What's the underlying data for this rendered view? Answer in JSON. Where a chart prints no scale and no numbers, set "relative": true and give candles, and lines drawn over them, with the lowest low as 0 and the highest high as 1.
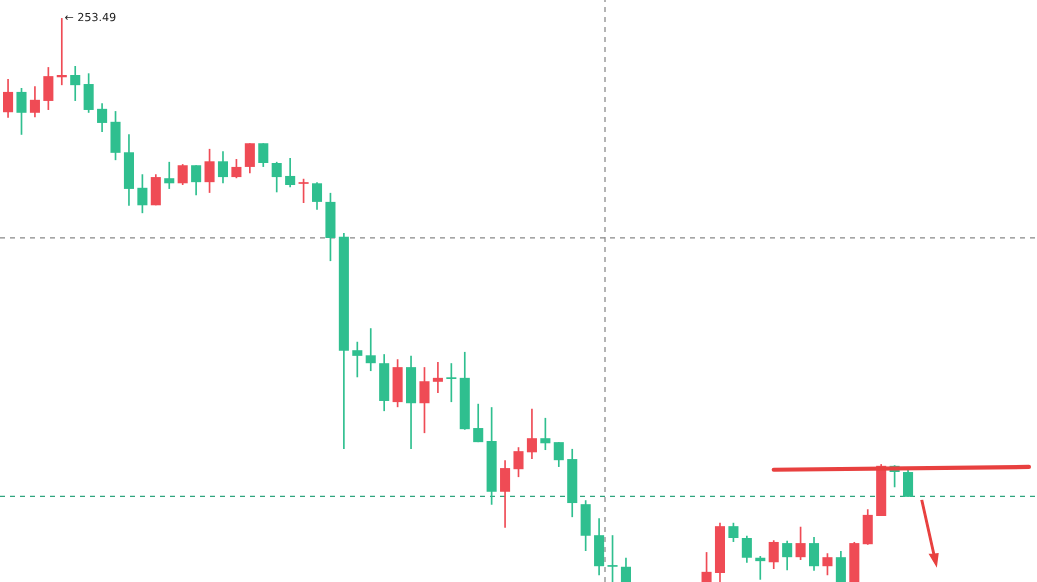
{
  "chart_data": {
    "type": "candlestick",
    "relative": true,
    "categories": [
      null,
      null,
      null,
      null,
      null,
      null,
      null,
      null,
      null,
      null,
      null,
      null,
      null,
      null,
      null,
      null,
      null,
      null,
      null,
      null,
      null,
      null,
      null,
      null,
      null,
      null,
      null,
      null,
      null,
      null,
      null,
      null,
      null,
      null,
      null,
      null,
      null,
      null,
      null,
      null,
      null,
      null,
      null,
      null,
      null,
      null,
      null,
      null,
      null,
      null,
      null,
      null,
      null,
      null,
      null,
      null,
      null,
      null,
      null,
      null,
      null,
      null,
      null,
      null,
      null,
      null,
      null,
      null,
      null,
      null,
      null,
      null,
      null,
      null,
      null,
      null,
      null
    ],
    "ohlc": [
      [
        0.833,
        0.892,
        0.823,
        0.869
      ],
      [
        0.869,
        0.876,
        0.793,
        0.832
      ],
      [
        0.832,
        0.879,
        0.824,
        0.855
      ],
      [
        0.853,
        0.913,
        0.837,
        0.897
      ],
      [
        0.895,
        1,
        0.881,
        0.899
      ],
      [
        0.899,
        0.915,
        0.853,
        0.881
      ],
      [
        0.883,
        0.902,
        0.832,
        0.837
      ],
      [
        0.839,
        0.849,
        0.798,
        0.814
      ],
      [
        0.816,
        0.835,
        0.748,
        0.761
      ],
      [
        0.762,
        0.794,
        0.667,
        0.697
      ],
      [
        0.699,
        0.723,
        0.654,
        0.668
      ],
      [
        0.668,
        0.723,
        0.668,
        0.718
      ],
      [
        0.716,
        0.745,
        0.697,
        0.707
      ],
      [
        0.707,
        0.741,
        0.704,
        0.739
      ],
      [
        0.739,
        0.739,
        0.686,
        0.709
      ],
      [
        0.709,
        0.768,
        0.69,
        0.746
      ],
      [
        0.746,
        0.764,
        0.707,
        0.718
      ],
      [
        0.718,
        0.75,
        0.716,
        0.736
      ],
      [
        0.736,
        0.778,
        0.725,
        0.778
      ],
      [
        0.778,
        0.778,
        0.736,
        0.743
      ],
      [
        0.743,
        0.745,
        0.691,
        0.718
      ],
      [
        0.72,
        0.752,
        0.7,
        0.704
      ],
      [
        0.706,
        0.715,
        0.672,
        0.707
      ],
      [
        0.707,
        0.709,
        0.66,
        0.674
      ],
      [
        0.674,
        0.69,
        0.569,
        0.61
      ],
      [
        0.612,
        0.619,
        0.236,
        0.41
      ],
      [
        0.411,
        0.426,
        0.363,
        0.401
      ],
      [
        0.402,
        0.45,
        0.374,
        0.388
      ],
      [
        0.388,
        0.404,
        0.303,
        0.321
      ],
      [
        0.319,
        0.395,
        0.31,
        0.381
      ],
      [
        0.381,
        0.401,
        0.236,
        0.317
      ],
      [
        0.317,
        0.381,
        0.264,
        0.356
      ],
      [
        0.355,
        0.39,
        0.335,
        0.362
      ],
      [
        0.363,
        0.388,
        0.319,
        0.36
      ],
      [
        0.362,
        0.408,
        0.27,
        0.271
      ],
      [
        0.273,
        0.316,
        0.248,
        0.248
      ],
      [
        0.25,
        0.31,
        0.137,
        0.16
      ],
      [
        0.16,
        0.216,
        0.096,
        0.202
      ],
      [
        0.2,
        0.239,
        0.186,
        0.232
      ],
      [
        0.23,
        0.307,
        0.218,
        0.255
      ],
      [
        0.255,
        0.291,
        0.234,
        0.246
      ],
      [
        0.248,
        0.248,
        0.204,
        0.216
      ],
      [
        0.218,
        0.236,
        0.115,
        0.14
      ],
      [
        0.138,
        0.145,
        0.055,
        0.082
      ],
      [
        0.083,
        0.113,
        0.012,
        0.028
      ],
      [
        0.03,
        0.083,
        0,
        0.027
      ],
      [
        0.027,
        0.043,
        0,
        0
      ],
      null,
      null,
      null,
      null,
      null,
      [
        0,
        0.053,
        0,
        0.018
      ],
      [
        0.016,
        0.105,
        0,
        0.099
      ],
      [
        0.099,
        0.105,
        0.071,
        0.078
      ],
      [
        0.078,
        0.082,
        0.034,
        0.043
      ],
      [
        0.043,
        0.046,
        0.004,
        0.037
      ],
      [
        0.035,
        0.074,
        0.023,
        0.071
      ],
      [
        0.069,
        0.073,
        0.021,
        0.044
      ],
      [
        0.044,
        0.098,
        0.039,
        0.069
      ],
      [
        0.069,
        0.08,
        0.02,
        0.028
      ],
      [
        0.028,
        0.051,
        0.012,
        0.044
      ],
      [
        0.044,
        0.055,
        0,
        0
      ],
      [
        0,
        0.071,
        0,
        0.069
      ],
      [
        0.067,
        0.129,
        0.066,
        0.119
      ],
      [
        0.117,
        0.209,
        0.117,
        0.206
      ],
      [
        0.206,
        0.207,
        0.168,
        0.195
      ],
      [
        0.195,
        0.202,
        0.151,
        0.151
      ],
      null,
      null,
      null,
      null,
      null,
      null,
      null,
      null,
      null
    ],
    "colors": [
      "#ef4b55",
      "#2fbf8f",
      "#ef4b55",
      "#ef4b55",
      "#ef4b55",
      "#2fbf8f",
      "#2fbf8f",
      "#2fbf8f",
      "#2fbf8f",
      "#2fbf8f",
      "#2fbf8f",
      "#ef4b55",
      "#2fbf8f",
      "#ef4b55",
      "#2fbf8f",
      "#ef4b55",
      "#2fbf8f",
      "#ef4b55",
      "#ef4b55",
      "#2fbf8f",
      "#2fbf8f",
      "#2fbf8f",
      "#ef4b55",
      "#2fbf8f",
      "#2fbf8f",
      "#2fbf8f",
      "#2fbf8f",
      "#2fbf8f",
      "#2fbf8f",
      "#ef4b55",
      "#2fbf8f",
      "#ef4b55",
      "#ef4b55",
      "#2fbf8f",
      "#2fbf8f",
      "#2fbf8f",
      "#2fbf8f",
      "#ef4b55",
      "#ef4b55",
      "#ef4b55",
      "#2fbf8f",
      "#2fbf8f",
      "#2fbf8f",
      "#2fbf8f",
      "#2fbf8f",
      "#2fbf8f",
      "#2fbf8f",
      null,
      null,
      null,
      null,
      null,
      "#ef4b55",
      "#ef4b55",
      "#2fbf8f",
      "#2fbf8f",
      "#2fbf8f",
      "#ef4b55",
      "#2fbf8f",
      "#ef4b55",
      "#2fbf8f",
      "#ef4b55",
      "#2fbf8f",
      "#ef4b55",
      "#ef4b55",
      "#ef4b55",
      "#2fbf8f",
      "#2fbf8f",
      null,
      null,
      null,
      null,
      null,
      null,
      null,
      null,
      null
    ],
    "series": [
      {
        "type": "line",
        "color": "#e8403f",
        "values": [
          null,
          null,
          null,
          null,
          null,
          null,
          null,
          null,
          null,
          null,
          null,
          null,
          null,
          null,
          null,
          null,
          null,
          null,
          null,
          null,
          null,
          null,
          null,
          null,
          null,
          null,
          null,
          null,
          null,
          null,
          null,
          null,
          null,
          null,
          null,
          null,
          null,
          null,
          null,
          null,
          null,
          null,
          null,
          null,
          null,
          null,
          null,
          null,
          null,
          null,
          null,
          null,
          null,
          null,
          null,
          null,
          null,
          0.199,
          null,
          null,
          null,
          null,
          null,
          null,
          null,
          null,
          null,
          null,
          null,
          null,
          null,
          null,
          null,
          null,
          null,
          null,
          0.204
        ]
      }
    ],
    "ref_lines": [
      {
        "axis": "y",
        "value": 0.61,
        "color": "#888888",
        "line_style": "dashed"
      },
      {
        "axis": "y",
        "value": 0.152,
        "color": "#2fa57f",
        "line_style": "dashed"
      }
    ],
    "annotations": [
      "← 253.49"
    ]
  }
}
